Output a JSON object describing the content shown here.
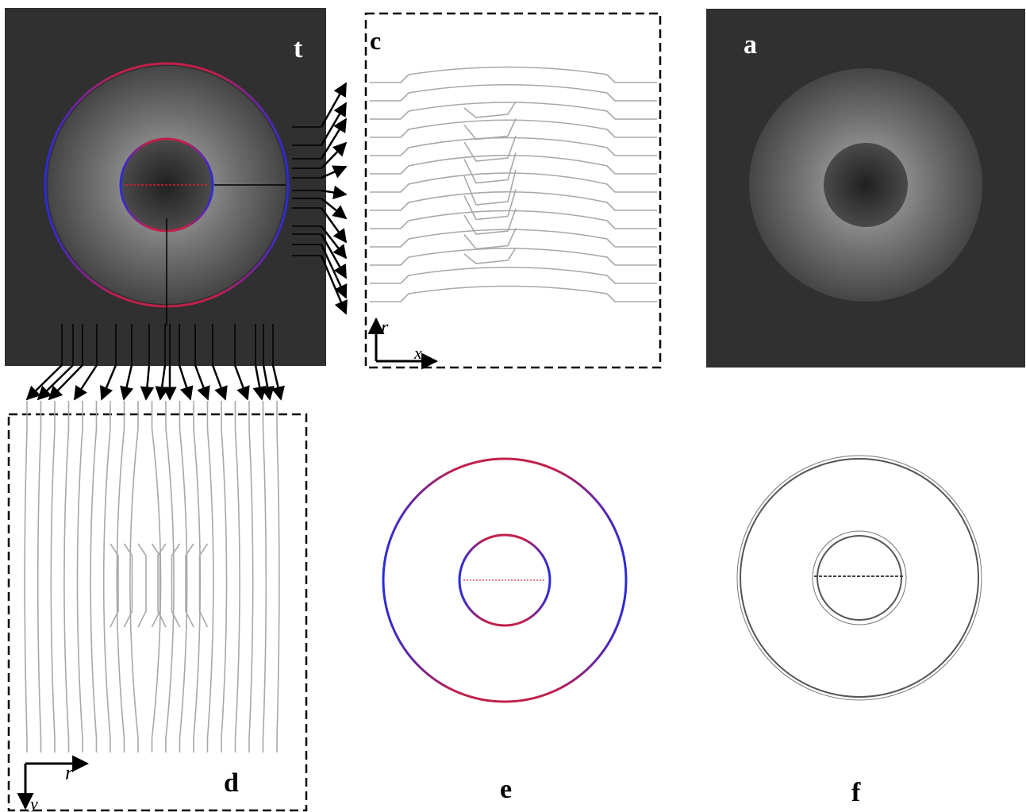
{
  "figure": {
    "panels": {
      "a": {
        "label": "a"
      },
      "b": {
        "label": "t"
      },
      "c": {
        "label": "c",
        "axis_vertical": "r",
        "axis_horizontal": "x"
      },
      "d": {
        "label": "d",
        "axis_horizontal": "r",
        "axis_vertical": "y"
      },
      "e": {
        "label": "e"
      },
      "f": {
        "label": "f"
      }
    },
    "colors": {
      "dark_background": "#303030",
      "contour_red": "#d0203a",
      "contour_blue": "#3030d0",
      "profile_line": "#a8a8a8",
      "arrow": "#000000",
      "ring_gray": "#555555"
    }
  }
}
